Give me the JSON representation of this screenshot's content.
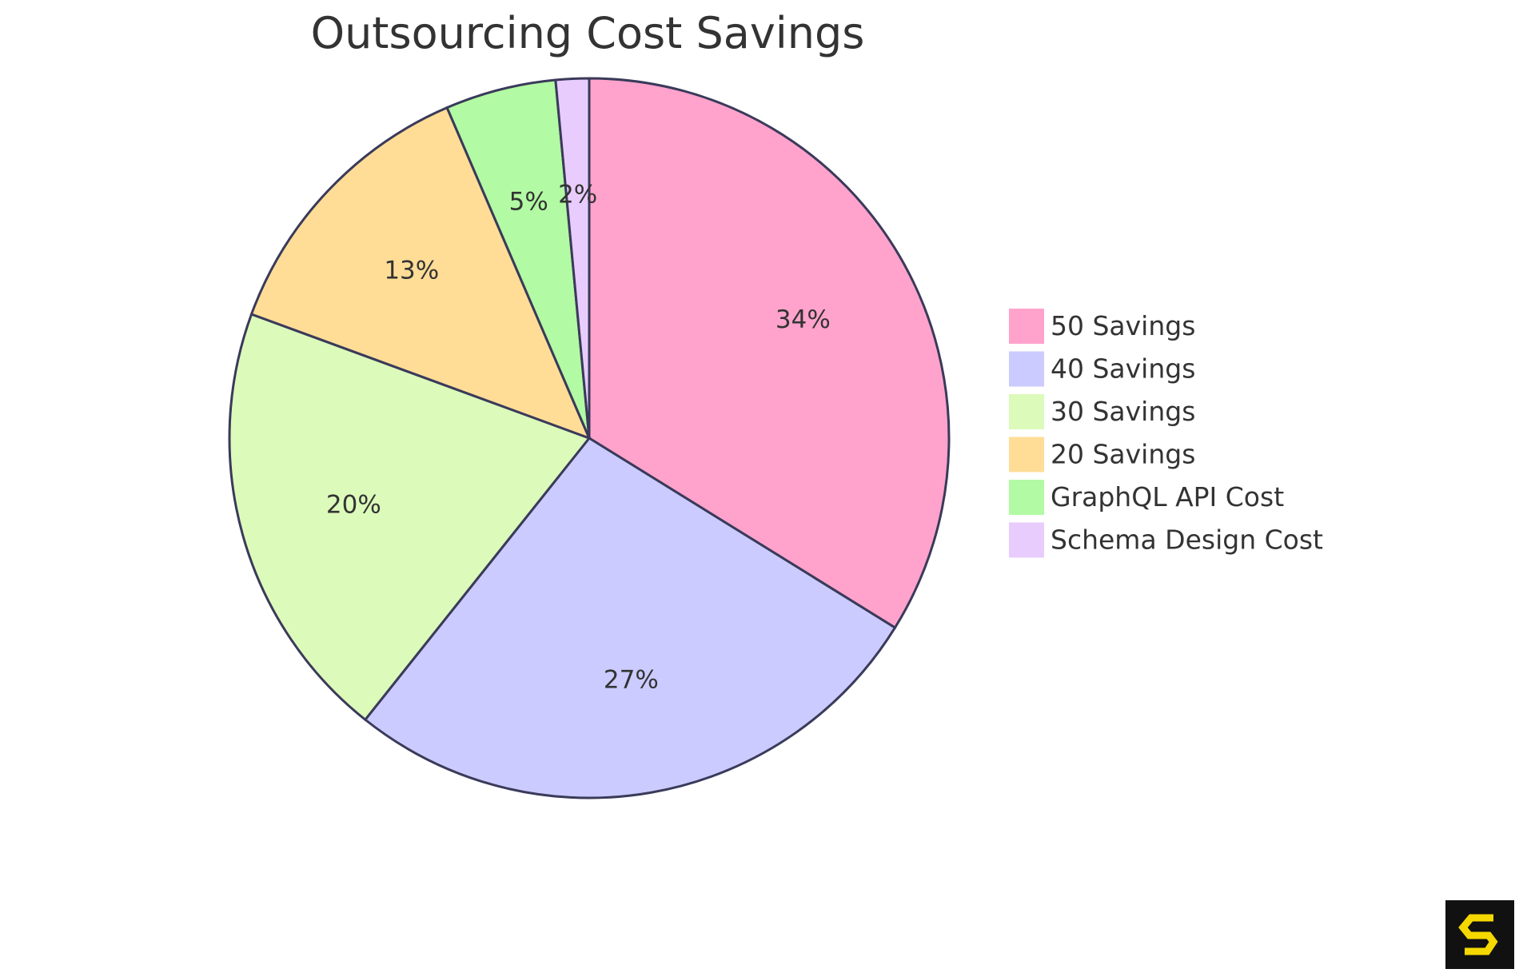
{
  "chart_data": {
    "type": "pie",
    "title": "Outsourcing Cost Savings",
    "slices": [
      {
        "label": "50 Savings",
        "value": 34,
        "display": "34%",
        "color": "#FFA3CC"
      },
      {
        "label": "40 Savings",
        "value": 27,
        "display": "27%",
        "color": "#CBCBFF"
      },
      {
        "label": "30 Savings",
        "value": 20,
        "display": "20%",
        "color": "#DCFABA"
      },
      {
        "label": "20 Savings",
        "value": 13,
        "display": "13%",
        "color": "#FFDD97"
      },
      {
        "label": "GraphQL API Cost",
        "value": 5,
        "display": "5%",
        "color": "#B2FAA3"
      },
      {
        "label": "Schema Design Cost",
        "value": 1.5,
        "display": "2%",
        "color": "#E8CCFD"
      }
    ],
    "legend_position": "right"
  },
  "brand": {
    "logo_color": "#F5D800",
    "logo_background": "#111111"
  }
}
